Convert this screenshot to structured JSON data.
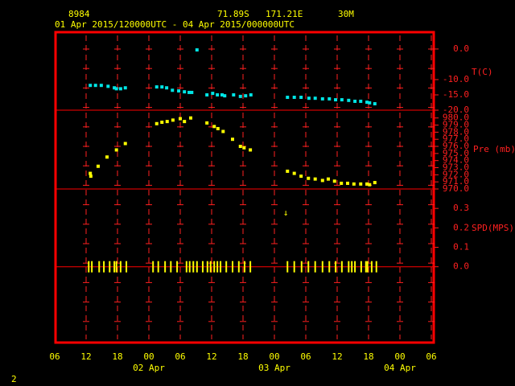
{
  "header": {
    "station": "8984",
    "lat": "71.89S",
    "lon": "171.21E",
    "elev": "30M",
    "period": "01 Apr 2015/120000UTC - 04 Apr 2015/000000UTC"
  },
  "page_number": "2",
  "chart_data": [
    {
      "type": "scatter",
      "ylabel": "T(C)",
      "color": "#00e5e5",
      "xlim": [
        6,
        78
      ],
      "ylim": [
        -20,
        5.5
      ],
      "yticks": [
        {
          "value": 0,
          "label": "0.0"
        },
        {
          "value": -10,
          "label": "-10.0"
        },
        {
          "value": -15,
          "label": "-15.0"
        },
        {
          "value": -20,
          "label": "-20.0"
        }
      ],
      "x": [
        12.8,
        13.8,
        14.9,
        16.2,
        17.4,
        17.8,
        18.6,
        19.5,
        25.5,
        26.5,
        27.4,
        28.5,
        29.7,
        30.8,
        31.7,
        32.2,
        33.2,
        35.1,
        36.2,
        37.1,
        38.0,
        38.5,
        40.2,
        41.5,
        42.5,
        43.5,
        50.5,
        51.8,
        53.1,
        54.6,
        55.8,
        57.2,
        58.5,
        59.7,
        60.9,
        62.2,
        63.4,
        64.5,
        65.7,
        66.2,
        67.2
      ],
      "values": [
        -11.9,
        -11.9,
        -11.9,
        -12.2,
        -12.7,
        -13.0,
        -13.0,
        -12.7,
        -12.4,
        -12.4,
        -12.7,
        -13.5,
        -13.7,
        -14.0,
        -14.2,
        -14.2,
        -0.3,
        -15.0,
        -14.5,
        -15.0,
        -15.0,
        -15.3,
        -15.0,
        -15.5,
        -15.3,
        -15.0,
        -15.8,
        -15.8,
        -15.8,
        -16.1,
        -16.1,
        -16.3,
        -16.3,
        -16.6,
        -16.6,
        -16.8,
        -17.1,
        -17.1,
        -17.4,
        -17.6,
        -17.9
      ]
    },
    {
      "type": "scatter",
      "ylabel": "Pre (mb)",
      "color": "#ffff00",
      "xlim": [
        6,
        78
      ],
      "ylim": [
        970,
        981.1
      ],
      "yticks": [
        {
          "value": 980,
          "label": "980.0"
        },
        {
          "value": 979,
          "label": "979.0"
        },
        {
          "value": 978,
          "label": "978.0"
        },
        {
          "value": 977,
          "label": "977.0"
        },
        {
          "value": 976,
          "label": "976.0"
        },
        {
          "value": 975,
          "label": "975.0"
        },
        {
          "value": 974,
          "label": "974.0"
        },
        {
          "value": 973,
          "label": "973.0"
        },
        {
          "value": 972,
          "label": "972.0"
        },
        {
          "value": 971,
          "label": "971.0"
        },
        {
          "value": 970,
          "label": "970.0"
        }
      ],
      "x": [
        12.8,
        12.9,
        14.3,
        16.0,
        17.8,
        19.5,
        25.5,
        26.5,
        27.5,
        28.6,
        30.0,
        30.8,
        32.0,
        35.1,
        36.5,
        37.2,
        38.2,
        40.0,
        41.5,
        42.2,
        43.4,
        50.5,
        51.8,
        53.1,
        54.5,
        55.8,
        57.2,
        58.3,
        59.5,
        60.8,
        62.0,
        63.2,
        64.5,
        65.7,
        66.2,
        67.2
      ],
      "values": [
        972.2,
        971.8,
        973.2,
        974.5,
        975.5,
        976.4,
        979.2,
        979.4,
        979.5,
        979.7,
        979.9,
        979.5,
        980.0,
        979.3,
        978.8,
        978.5,
        978.1,
        977.0,
        976.0,
        975.8,
        975.5,
        972.5,
        972.2,
        971.8,
        971.5,
        971.4,
        971.2,
        971.4,
        971.1,
        970.8,
        970.8,
        970.7,
        970.7,
        970.7,
        970.6,
        970.9
      ]
    },
    {
      "type": "ticks",
      "ylabel": "SPD(MPS)",
      "color": "#ffff00",
      "annotation": "↓",
      "xlim": [
        6,
        78
      ],
      "ylim": [
        -0.39,
        0.4
      ],
      "yticks": [
        {
          "value": 0.3,
          "label": "0.3"
        },
        {
          "value": 0.2,
          "label": "0.2"
        },
        {
          "value": 0.1,
          "label": "0.1"
        },
        {
          "value": 0,
          "label": "0.0"
        }
      ],
      "xticks": [
        {
          "value": 6,
          "label": "06"
        },
        {
          "value": 12,
          "label": "12"
        },
        {
          "value": 18,
          "label": "18"
        },
        {
          "value": 24,
          "label": "00"
        },
        {
          "value": 30,
          "label": "06"
        },
        {
          "value": 36,
          "label": "12"
        },
        {
          "value": 42,
          "label": "18"
        },
        {
          "value": 48,
          "label": "00"
        },
        {
          "value": 54,
          "label": "06"
        },
        {
          "value": 60,
          "label": "12"
        },
        {
          "value": 66,
          "label": "18"
        },
        {
          "value": 72,
          "label": "00"
        },
        {
          "value": 78,
          "label": "06"
        }
      ],
      "date_labels": [
        {
          "value": 24,
          "label": "02 Apr"
        },
        {
          "value": 48,
          "label": "03 Apr"
        },
        {
          "value": 72,
          "label": "04 Apr"
        }
      ],
      "x": [
        12.5,
        13.1,
        14.5,
        15.4,
        16.5,
        17.4,
        17.8,
        18.6,
        19.7,
        24.8,
        25.8,
        27.1,
        28.2,
        29.4,
        31.2,
        31.8,
        32.5,
        33.2,
        34.3,
        35.2,
        35.8,
        36.5,
        37.1,
        37.7,
        38.8,
        40.0,
        41.2,
        42.3,
        43.4,
        50.5,
        51.8,
        53.2,
        54.5,
        55.8,
        57.2,
        58.5,
        59.7,
        60.9,
        62.2,
        62.8,
        63.4,
        64.6,
        65.5,
        65.8,
        66.6,
        67.5
      ],
      "values": [
        0,
        0,
        0,
        0,
        0,
        0,
        0,
        0,
        0,
        0,
        0,
        0,
        0,
        0,
        0,
        0,
        0,
        0,
        0,
        0,
        0,
        0,
        0,
        0,
        0,
        0,
        0,
        0,
        0,
        0,
        0,
        0,
        0,
        0,
        0,
        0,
        0,
        0,
        0,
        0,
        0,
        0,
        0,
        0,
        0,
        0
      ]
    }
  ]
}
